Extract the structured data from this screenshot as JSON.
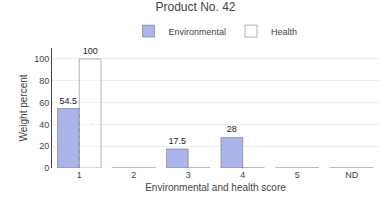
{
  "chart_data": {
    "type": "bar",
    "title": "Product No. 42",
    "xlabel": "Environmental and health score",
    "ylabel": "Weight percent",
    "categories": [
      "1",
      "2",
      "3",
      "4",
      "5",
      "ND"
    ],
    "series": [
      {
        "name": "Environmental",
        "color": "#aab4e8",
        "values": [
          54.5,
          0,
          17.5,
          28,
          0,
          0
        ],
        "value_labels": [
          "54.5",
          null,
          "17.5",
          "28",
          null,
          null
        ]
      },
      {
        "name": "Health",
        "color": "#b03060",
        "values": [
          100,
          0,
          0,
          0,
          0,
          0
        ],
        "value_labels": [
          "100",
          null,
          null,
          null,
          null,
          null
        ]
      }
    ],
    "ylim": [
      0,
      110
    ],
    "yticks": [
      0,
      20,
      40,
      60,
      80,
      100
    ],
    "grid": true,
    "legend": "top",
    "data_labels": true
  }
}
